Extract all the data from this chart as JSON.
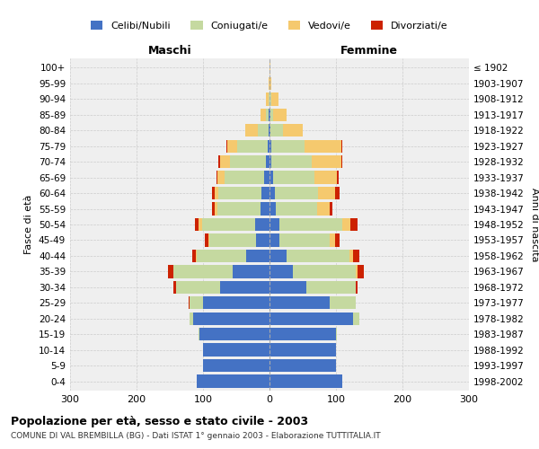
{
  "age_groups": [
    "0-4",
    "5-9",
    "10-14",
    "15-19",
    "20-24",
    "25-29",
    "30-34",
    "35-39",
    "40-44",
    "45-49",
    "50-54",
    "55-59",
    "60-64",
    "65-69",
    "70-74",
    "75-79",
    "80-84",
    "85-89",
    "90-94",
    "95-99",
    "100+"
  ],
  "birth_years": [
    "1998-2002",
    "1993-1997",
    "1988-1992",
    "1983-1987",
    "1978-1982",
    "1973-1977",
    "1968-1972",
    "1963-1967",
    "1958-1962",
    "1953-1957",
    "1948-1952",
    "1943-1947",
    "1938-1942",
    "1933-1937",
    "1928-1932",
    "1923-1927",
    "1918-1922",
    "1913-1917",
    "1908-1912",
    "1903-1907",
    "≤ 1902"
  ],
  "colors": {
    "celibi": "#4472C4",
    "coniugati": "#c5d9a0",
    "vedovi": "#f5c96e",
    "divorziati": "#cc2200"
  },
  "males": {
    "celibi": [
      110,
      100,
      100,
      105,
      115,
      100,
      75,
      55,
      35,
      20,
      22,
      14,
      12,
      8,
      5,
      3,
      2,
      1,
      0,
      0,
      0
    ],
    "coniugati": [
      0,
      0,
      0,
      2,
      5,
      20,
      65,
      90,
      75,
      70,
      80,
      65,
      65,
      60,
      55,
      45,
      15,
      5,
      2,
      0,
      0
    ],
    "vedovi": [
      0,
      0,
      0,
      0,
      0,
      0,
      0,
      0,
      1,
      2,
      5,
      3,
      5,
      10,
      15,
      15,
      20,
      8,
      3,
      1,
      0
    ],
    "divorziati": [
      0,
      0,
      0,
      0,
      0,
      2,
      5,
      8,
      5,
      5,
      5,
      5,
      5,
      2,
      2,
      2,
      0,
      0,
      0,
      0,
      0
    ]
  },
  "females": {
    "celibi": [
      110,
      100,
      100,
      100,
      125,
      90,
      55,
      35,
      25,
      15,
      15,
      10,
      8,
      5,
      3,
      3,
      2,
      1,
      0,
      0,
      0
    ],
    "coniugati": [
      0,
      0,
      0,
      2,
      10,
      40,
      75,
      95,
      95,
      75,
      95,
      62,
      65,
      62,
      60,
      50,
      18,
      5,
      3,
      0,
      0
    ],
    "vedovi": [
      0,
      0,
      0,
      0,
      0,
      0,
      0,
      2,
      5,
      8,
      12,
      18,
      25,
      35,
      45,
      55,
      30,
      20,
      10,
      3,
      1
    ],
    "divorziati": [
      0,
      0,
      0,
      0,
      0,
      0,
      2,
      10,
      10,
      8,
      10,
      5,
      8,
      2,
      2,
      2,
      0,
      0,
      0,
      0,
      0
    ]
  },
  "title": "Popolazione per età, sesso e stato civile - 2003",
  "subtitle": "COMUNE DI VAL BREMBILLA (BG) - Dati ISTAT 1° gennaio 2003 - Elaborazione TUTTITALIA.IT",
  "xlabel_left": "Maschi",
  "xlabel_right": "Femmine",
  "ylabel_left": "Fasce di età",
  "ylabel_right": "Anni di nascita",
  "xlim": 300,
  "background_color": "#efefef",
  "grid_color": "#cccccc"
}
